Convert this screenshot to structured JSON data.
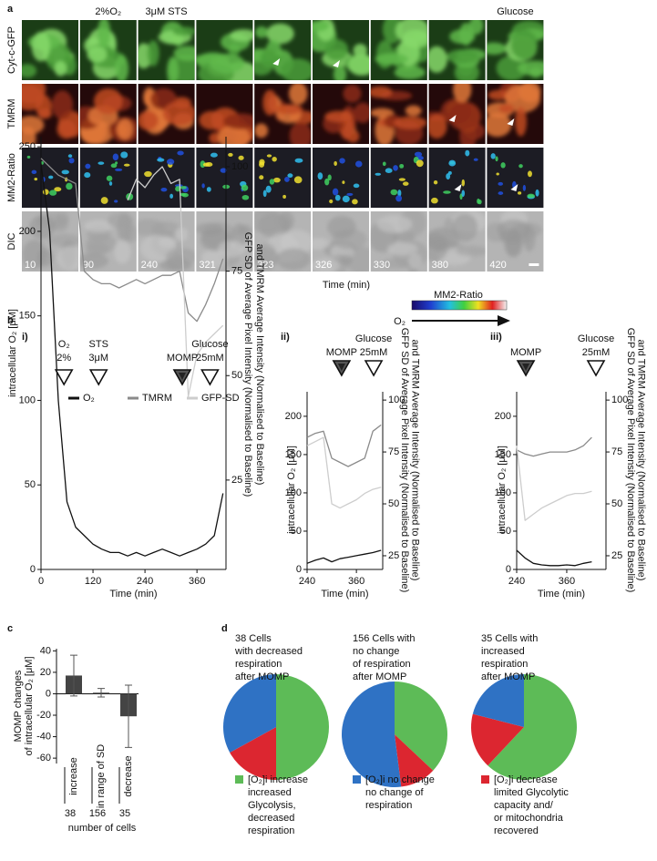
{
  "panel_labels": [
    "a",
    "b",
    "c",
    "d"
  ],
  "panel_a": {
    "row_labels": [
      "Cyt-c-GFP",
      "TMRM",
      "MM2-Ratio",
      "DIC"
    ],
    "headers": [
      "2%O₂",
      "3μM STS",
      "Glucose"
    ],
    "times": [
      10,
      90,
      240,
      321,
      323,
      326,
      330,
      380,
      420
    ],
    "xlabel": "Time (min)",
    "scale_title": "MM2-Ratio",
    "scale_arrow_label": "O₂"
  },
  "chart_data": [
    {
      "type": "line",
      "panel": "i)",
      "x": [
        0,
        20,
        40,
        60,
        80,
        100,
        120,
        140,
        160,
        180,
        200,
        220,
        240,
        260,
        280,
        300,
        320,
        340,
        360,
        380,
        400,
        420
      ],
      "series": [
        {
          "name": "O₂",
          "color": "#111111",
          "values": [
            240,
            200,
            100,
            40,
            25,
            20,
            15,
            12,
            10,
            10,
            8,
            10,
            8,
            10,
            12,
            10,
            8,
            10,
            12,
            15,
            20,
            45
          ]
        },
        {
          "name": "TMRM",
          "color": "#8a8a8a",
          "axis": "y2",
          "values": [
            102,
            100,
            98,
            97,
            96,
            75,
            73,
            72,
            72,
            71,
            72,
            73,
            72,
            73,
            74,
            74,
            75,
            65,
            63,
            67,
            72,
            78
          ]
        },
        {
          "name": "GFP-SD",
          "color": "#cdcdcd",
          "axis": "y2",
          "values": [
            null,
            null,
            null,
            null,
            null,
            null,
            null,
            null,
            null,
            null,
            92,
            97,
            95,
            98,
            100,
            96,
            97,
            45,
            55,
            58,
            60,
            62
          ]
        }
      ],
      "xlim": [
        0,
        427
      ],
      "xticks": [
        0,
        120,
        240,
        360
      ],
      "ylim": [
        0,
        256
      ],
      "yticks": [
        0,
        50,
        100,
        150,
        200,
        250
      ],
      "y2lim": [
        3.6,
        107.2
      ],
      "y2ticks": [
        25,
        50,
        75,
        100
      ],
      "xlabel": "Time (min)",
      "ylabel": "intracellular O₂ [μM]",
      "y2label": [
        "GFP SD of Average Pixel Intensity (Normalised to Baseline)",
        "and TMRM Average Intensity (Normalised to Baseline)"
      ],
      "annotations": [
        {
          "lines": [
            "O₂",
            "2%"
          ],
          "x": 53
        },
        {
          "lines": [
            "STS",
            "3μM"
          ],
          "x": 133
        },
        {
          "lines": [
            "MOMP"
          ],
          "x": 326,
          "filled": true
        },
        {
          "lines": [
            "Glucose",
            "25mM"
          ],
          "x": 390
        }
      ]
    },
    {
      "type": "line",
      "panel": "ii)",
      "x": [
        240,
        260,
        280,
        300,
        320,
        340,
        360,
        380,
        400,
        420
      ],
      "series": [
        {
          "color": "#111111",
          "values": [
            8,
            12,
            15,
            10,
            14,
            16,
            18,
            20,
            22,
            25
          ]
        },
        {
          "color": "#8a8a8a",
          "axis": "y2",
          "values": [
            82,
            84,
            85,
            72,
            70,
            68,
            70,
            72,
            85,
            88
          ]
        },
        {
          "color": "#cdcdcd",
          "axis": "y2",
          "values": [
            78,
            80,
            82,
            50,
            48,
            50,
            52,
            55,
            57,
            58
          ]
        }
      ],
      "xlim": [
        240,
        424
      ],
      "xticks": [
        240,
        360
      ],
      "ylim": [
        0,
        232
      ],
      "yticks": [
        0,
        50,
        100,
        150,
        200
      ],
      "y2lim": [
        18.4,
        104
      ],
      "y2ticks": [
        25,
        50,
        75,
        100
      ],
      "xlabel": "Time (min)",
      "ylabel": "intracellular O₂ [μM]",
      "y2label": [
        "GFP SD of Average Pixel Intensity (Normalised to Baseline)",
        "and TMRM Average Intensity (Normalised to Baseline)"
      ],
      "annotations": [
        {
          "lines": [
            "MOMP"
          ],
          "x": 324,
          "filled": true
        },
        {
          "lines": [
            "Glucose",
            "25mM"
          ],
          "x": 402
        }
      ]
    },
    {
      "type": "line",
      "panel": "iii)",
      "x": [
        240,
        260,
        280,
        300,
        320,
        340,
        360,
        380,
        400,
        420
      ],
      "series": [
        {
          "color": "#111111",
          "values": [
            25,
            15,
            8,
            6,
            5,
            5,
            6,
            5,
            8,
            10
          ]
        },
        {
          "color": "#8a8a8a",
          "axis": "y2",
          "values": [
            76,
            74,
            73,
            74,
            75,
            75,
            75,
            76,
            78,
            82
          ]
        },
        {
          "color": "#cdcdcd",
          "axis": "y2",
          "values": [
            78,
            42,
            45,
            48,
            50,
            52,
            54,
            55,
            55,
            56
          ]
        }
      ],
      "xlim": [
        240,
        454
      ],
      "xticks": [
        240,
        360
      ],
      "ylim": [
        0,
        232
      ],
      "yticks": [
        0,
        50,
        100,
        150,
        200
      ],
      "y2lim": [
        18.4,
        104
      ],
      "y2ticks": [
        25,
        50,
        75,
        100
      ],
      "xlabel": "Time (min)",
      "ylabel": "intracellular O₂ [μM]",
      "y2label": [
        "GFP SD of Average Pixel Intensity (Normalised to Baseline)",
        "and TMRM Average Intensity (Normalised to Baseline)"
      ],
      "annotations": [
        {
          "lines": [
            "MOMP"
          ],
          "x": 262,
          "filled": true
        },
        {
          "lines": [
            "Glucose",
            "25mM"
          ],
          "x": 430
        }
      ]
    },
    {
      "type": "bar",
      "categories": [
        "increase",
        "in range of SD",
        "decrease"
      ],
      "values": [
        17,
        1,
        -21
      ],
      "errors": [
        19,
        4,
        29
      ],
      "color": "#444444",
      "ylim": [
        -65,
        42
      ],
      "yticks": [
        40,
        20,
        0,
        -20,
        -40,
        -60
      ],
      "ylabel": [
        "MOMP changes",
        "of intracellular O₂ [μM]"
      ],
      "cell_counts": [
        38,
        156,
        35
      ],
      "xlabel": "number of cells"
    },
    {
      "type": "pie",
      "categories": [
        [
          "[O₂]i increase",
          "increased",
          "Glycolysis,",
          "decreased",
          "respiration"
        ],
        [
          "[O₂]i no change",
          "no change of",
          "respiration"
        ],
        [
          "[O₂]i decrease",
          "limited Glycolytic",
          "capacity and/",
          "or mitochondria",
          "recovered"
        ]
      ],
      "colors": [
        "#5dbb57",
        "#2f72c4",
        "#dc2630"
      ],
      "series": [
        {
          "name": [
            "38 Cells",
            "with decreased",
            "respiration",
            "after MOMP"
          ],
          "values": [
            50,
            33,
            17
          ]
        },
        {
          "name": [
            "156 Cells with",
            "no change",
            "of respiration",
            "after MOMP"
          ],
          "values": [
            37,
            52,
            11
          ]
        },
        {
          "name": [
            "35 Cells with",
            "increased",
            "respiration",
            "after MOMP"
          ],
          "values": [
            62,
            21,
            17
          ]
        }
      ]
    }
  ]
}
